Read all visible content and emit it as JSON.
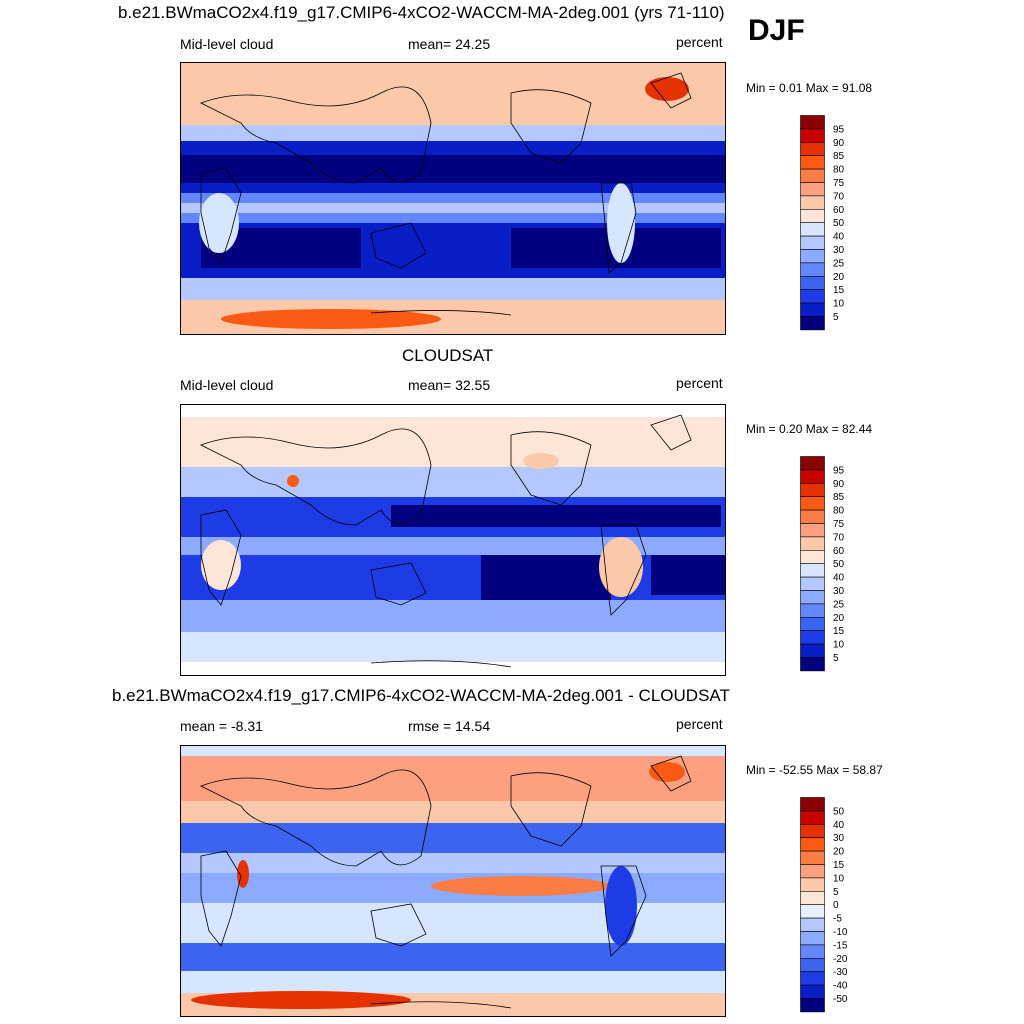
{
  "season": "DJF",
  "chart_data": [
    {
      "type": "heatmap",
      "id": "model",
      "title": "b.e21.BWmaCO2x4.f19_g17.CMIP6-4xCO2-WACCM-MA-2deg.001 (yrs 71-110)",
      "left_label": "Mid-level cloud",
      "center_label": "mean=  24.25",
      "right_label": "percent",
      "min_max": "Min =   0.01 Max =  91.08",
      "variable": "Mid-level cloud",
      "units": "percent",
      "mean": 24.25,
      "min": 0.01,
      "max": 91.08,
      "levels": [
        "95",
        "90",
        "85",
        "80",
        "75",
        "70",
        "60",
        "50",
        "40",
        "30",
        "25",
        "20",
        "15",
        "10",
        "5"
      ],
      "colors": [
        "#8b0000",
        "#c80000",
        "#e63200",
        "#fa5a14",
        "#fa7d46",
        "#fca080",
        "#fcc8aa",
        "#fde6d8",
        "#d6e6ff",
        "#b4c8ff",
        "#8caaff",
        "#6487ff",
        "#3c64f0",
        "#1e3ce6",
        "#0a1ec8",
        "#000080"
      ]
    },
    {
      "type": "heatmap",
      "id": "obs",
      "title": "CLOUDSAT",
      "left_label": "Mid-level cloud",
      "center_label": "mean=  32.55",
      "right_label": "percent",
      "min_max": "Min =   0.20 Max =  82.44",
      "variable": "Mid-level cloud",
      "units": "percent",
      "mean": 32.55,
      "min": 0.2,
      "max": 82.44,
      "levels": [
        "95",
        "90",
        "85",
        "80",
        "75",
        "70",
        "60",
        "50",
        "40",
        "30",
        "25",
        "20",
        "15",
        "10",
        "5"
      ],
      "colors": [
        "#8b0000",
        "#c80000",
        "#e63200",
        "#fa5a14",
        "#fa7d46",
        "#fca080",
        "#fcc8aa",
        "#fde6d8",
        "#d6e6ff",
        "#b4c8ff",
        "#8caaff",
        "#6487ff",
        "#3c64f0",
        "#1e3ce6",
        "#0a1ec8",
        "#000080"
      ]
    },
    {
      "type": "heatmap",
      "id": "diff",
      "title": "b.e21.BWmaCO2x4.f19_g17.CMIP6-4xCO2-WACCM-MA-2deg.001 - CLOUDSAT",
      "left_label": "mean =  -8.31",
      "center_label": "rmse =  14.54",
      "right_label": "percent",
      "min_max": "Min = -52.55 Max =  58.87",
      "mean": -8.31,
      "rmse": 14.54,
      "min": -52.55,
      "max": 58.87,
      "units": "percent",
      "levels": [
        "50",
        "40",
        "30",
        "20",
        "15",
        "10",
        "5",
        "0",
        "-5",
        "-10",
        "-15",
        "-20",
        "-30",
        "-40",
        "-50"
      ],
      "colors": [
        "#8b0000",
        "#c80000",
        "#e63200",
        "#fa5a14",
        "#fa7d46",
        "#fca080",
        "#fcc8aa",
        "#fde6d8",
        "#e8f0ff",
        "#b4c8ff",
        "#8caaff",
        "#6487ff",
        "#3c64f0",
        "#1e3ce6",
        "#0a1ec8",
        "#000080"
      ]
    }
  ]
}
